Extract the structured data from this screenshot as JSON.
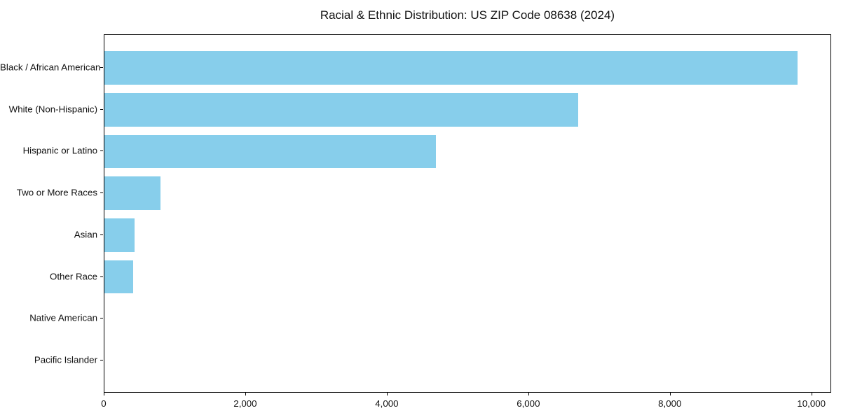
{
  "title": "Racial & Ethnic Distribution: US ZIP Code 08638 (2024)",
  "chart_data": {
    "type": "bar",
    "orientation": "horizontal",
    "title": "Racial & Ethnic Distribution: US ZIP Code 08638 (2024)",
    "categories": [
      "Black / African American",
      "White (Non-Hispanic)",
      "Hispanic or Latino",
      "Two or More Races",
      "Asian",
      "Other Race",
      "Native American",
      "Pacific Islander"
    ],
    "values": [
      9790,
      6690,
      4680,
      790,
      430,
      410,
      0,
      0
    ],
    "xlabel": "",
    "ylabel": "",
    "xlim": [
      0,
      10280
    ],
    "xticks": [
      0,
      2000,
      4000,
      6000,
      8000,
      10000
    ],
    "xtick_labels": [
      "0",
      "2,000",
      "4,000",
      "6,000",
      "8,000",
      "10,000"
    ],
    "bar_color": "#87CEEB",
    "grid": false,
    "legend": false
  }
}
